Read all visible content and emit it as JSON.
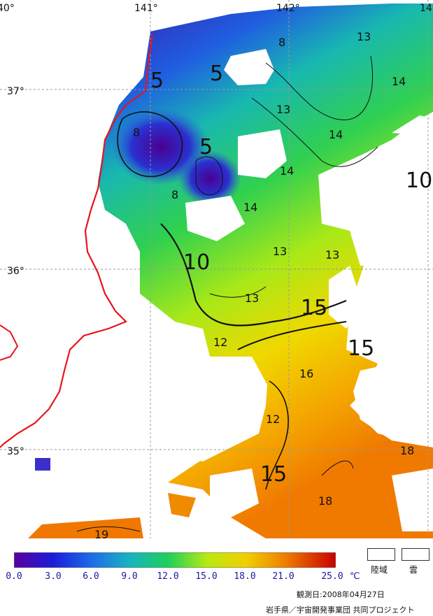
{
  "map": {
    "lon_labels": [
      "40°",
      "141°",
      "142°",
      "14"
    ],
    "lat_labels": [
      "37°",
      "36°",
      "35°"
    ],
    "isotherm_labels": [
      "5",
      "5",
      "5",
      "8",
      "8",
      "8",
      "13",
      "13",
      "13",
      "13",
      "14",
      "14",
      "14",
      "14",
      "10",
      "10",
      "13",
      "12",
      "15",
      "15",
      "16",
      "12",
      "15",
      "18",
      "18",
      "19"
    ]
  },
  "colorbar": {
    "ticks": [
      "0.0",
      "3.0",
      "6.0",
      "9.0",
      "12.0",
      "15.0",
      "18.0",
      "21.0",
      "25.0"
    ],
    "unit": "℃",
    "colors": [
      "#5a00a0",
      "#1c1cd8",
      "#1d6be8",
      "#18b4c0",
      "#1ed05a",
      "#b8ea12",
      "#f0d000",
      "#f08000",
      "#c80000"
    ]
  },
  "keys": {
    "land": "陸域",
    "cloud": "雲"
  },
  "footer": {
    "date": "観測日:2008年04月27日",
    "credit": "岩手県／宇宙開発事業団 共同プロジェクト"
  }
}
